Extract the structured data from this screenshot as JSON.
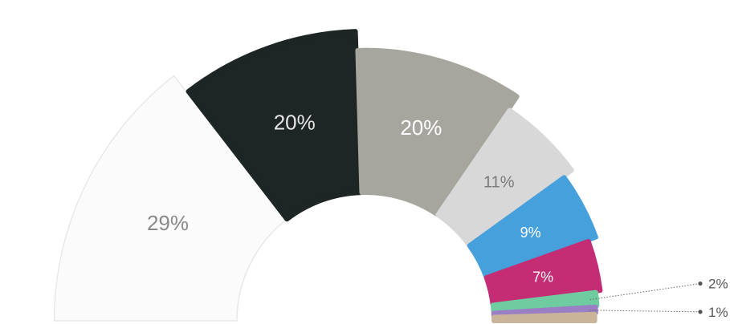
{
  "chart_data": {
    "type": "pie",
    "subtype": "semicircle-donut",
    "title": "",
    "labels_format": "percent",
    "slices": [
      {
        "label": "29%",
        "value": 29,
        "color": "#fbfbfb",
        "text_color": "#8a8a8a"
      },
      {
        "label": "20%",
        "value": 20,
        "color": "#1d2525",
        "text_color": "#e6e6e6"
      },
      {
        "label": "20%",
        "value": 20,
        "color": "#a7a69e",
        "text_color": "#ffffff"
      },
      {
        "label": "11%",
        "value": 11,
        "color": "#d8d8d8",
        "text_color": "#7a7a7a"
      },
      {
        "label": "9%",
        "value": 9,
        "color": "#45a0db",
        "text_color": "#ffffff"
      },
      {
        "label": "7%",
        "value": 7,
        "color": "#c42c74",
        "text_color": "#ffffff"
      },
      {
        "label": "2%",
        "value": 2,
        "color": "#6fcca0",
        "text_color": "#555555",
        "callout": true
      },
      {
        "label": "1%",
        "value": 1,
        "color": "#9b7fc4",
        "text_color": "#555555",
        "callout": true
      },
      {
        "label": "",
        "value": 1,
        "color": "#c9b49a",
        "text_color": "#555555"
      }
    ]
  }
}
